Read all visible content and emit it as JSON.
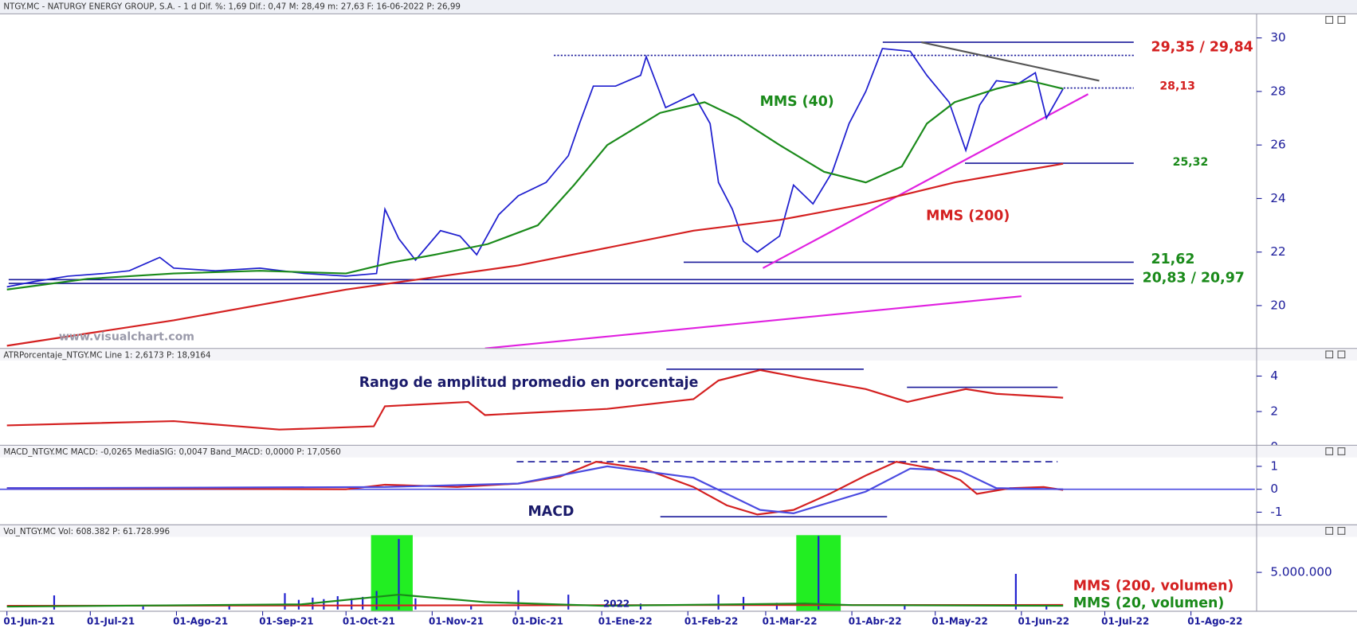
{
  "chart_data": [
    {
      "type": "line",
      "title": "NTGY.MC - NATURGY ENERGY GROUP, S.A. -  1 d Dif. %: 1,69 Dif.: 0,47 M: 28,49 m: 27,63 F: 16-06-2022 P: 26,99",
      "ylim": [
        18.4,
        30.9
      ],
      "yticks": [
        20,
        22,
        24,
        26,
        28,
        30
      ],
      "series": [
        {
          "color": "#1f1fcf",
          "x": [
            "2021-06-01",
            "2021-06-11",
            "2021-06-23",
            "2021-07-06",
            "2021-07-15",
            "2021-07-26",
            "2021-07-31",
            "2021-08-15",
            "2021-08-31",
            "2021-09-16",
            "2021-10-01",
            "2021-10-12",
            "2021-10-15",
            "2021-10-20",
            "2021-10-26",
            "2021-11-04",
            "2021-11-11",
            "2021-11-17",
            "2021-11-25",
            "2021-12-02",
            "2021-12-12",
            "2021-12-20",
            "2021-12-24",
            "2021-12-29",
            "2022-01-06",
            "2022-01-15",
            "2022-01-17",
            "2022-01-24",
            "2022-02-03",
            "2022-02-09",
            "2022-02-12",
            "2022-02-17",
            "2022-02-21",
            "2022-02-26",
            "2022-03-06",
            "2022-03-11",
            "2022-03-18",
            "2022-03-25",
            "2022-03-31",
            "2022-04-06",
            "2022-04-12",
            "2022-04-22",
            "2022-04-28",
            "2022-05-06",
            "2022-05-12",
            "2022-05-17",
            "2022-05-23",
            "2022-05-31",
            "2022-06-06",
            "2022-06-10",
            "2022-06-16"
          ],
          "values": [
            20.7,
            20.9,
            21.1,
            21.2,
            21.3,
            21.8,
            21.4,
            21.3,
            21.4,
            21.2,
            21.1,
            21.2,
            23.6,
            22.5,
            21.7,
            22.8,
            22.6,
            21.9,
            23.4,
            24.1,
            24.6,
            25.6,
            26.8,
            28.2,
            28.2,
            28.6,
            29.3,
            27.4,
            27.9,
            26.8,
            24.6,
            23.6,
            22.4,
            22.0,
            22.6,
            24.5,
            23.8,
            25.0,
            26.8,
            28.0,
            29.6,
            29.5,
            28.6,
            27.6,
            25.8,
            27.5,
            28.4,
            28.3,
            28.7,
            27.0,
            28.1
          ]
        },
        {
          "color": "#1a8a1a",
          "x": [
            "2021-06-01",
            "2021-06-30",
            "2021-07-31",
            "2021-08-31",
            "2021-10-01",
            "2021-10-17",
            "2021-11-02",
            "2021-11-21",
            "2021-12-09",
            "2021-12-22",
            "2022-01-03",
            "2022-01-22",
            "2022-02-07",
            "2022-02-19",
            "2022-03-06",
            "2022-03-22",
            "2022-04-06",
            "2022-04-19",
            "2022-04-28",
            "2022-05-08",
            "2022-05-23",
            "2022-06-04",
            "2022-06-16"
          ],
          "values": [
            20.6,
            21.0,
            21.2,
            21.3,
            21.2,
            21.6,
            21.9,
            22.3,
            23.0,
            24.5,
            26.0,
            27.2,
            27.6,
            27.0,
            26.0,
            25.0,
            24.6,
            25.2,
            26.8,
            27.6,
            28.1,
            28.4,
            28.1
          ]
        },
        {
          "color": "#d42020",
          "x": [
            "2021-06-01",
            "2021-07-31",
            "2021-10-01",
            "2021-12-02",
            "2022-02-03",
            "2022-03-06",
            "2022-04-06",
            "2022-05-08",
            "2022-06-16"
          ],
          "values": [
            18.5,
            19.45,
            20.6,
            21.5,
            22.8,
            23.2,
            23.8,
            24.6,
            25.3
          ]
        }
      ],
      "levels": [
        {
          "label": "29,35 / 29,84",
          "values": [
            29.35,
            29.84
          ],
          "styles": [
            "dotted",
            "solid"
          ],
          "color": "#1a1a9a",
          "label_color": "#d42020",
          "bold": true
        },
        {
          "label": "28,13",
          "values": [
            28.13
          ],
          "styles": [
            "dotted"
          ],
          "color": "#1a1a9a",
          "label_color": "#d42020",
          "bold": false
        },
        {
          "label": "25,32",
          "values": [
            25.32
          ],
          "styles": [
            "solid"
          ],
          "color": "#1a1a9a",
          "label_color": "#1a8a1a",
          "bold": false
        },
        {
          "label": "21,62",
          "values": [
            21.62
          ],
          "styles": [
            "solid"
          ],
          "color": "#1a1a9a",
          "label_color": "#1a8a1a",
          "bold": true
        },
        {
          "label": "20,83 / 20,97",
          "values": [
            20.83,
            20.97
          ],
          "styles": [
            "solid",
            "solid"
          ],
          "color": "#1a1a9a",
          "label_color": "#1a8a1a",
          "bold": true
        }
      ],
      "trendlines": [
        {
          "x": [
            "2022-02-28",
            "2022-06-25"
          ],
          "y": [
            21.4,
            27.9
          ],
          "color": "#e020e0"
        },
        {
          "x": [
            "2021-11-20",
            "2022-06-01"
          ],
          "y": [
            18.4,
            20.35
          ],
          "color": "#e020e0"
        },
        {
          "x": [
            "2022-04-26",
            "2022-06-29"
          ],
          "y": [
            29.84,
            28.4
          ],
          "color": "#555555"
        }
      ],
      "annotations": [
        {
          "text": "MMS (40)",
          "color": "#1a8a1a"
        },
        {
          "text": "MMS (200)",
          "color": "#d42020"
        },
        {
          "text": "www.visualchart.com",
          "color": "#9a9aaa"
        }
      ]
    },
    {
      "type": "line",
      "title": "ATRPorcentaje_NTGY.MC Line 1: 2,6173 P: 18,9164",
      "ylim": [
        0.1,
        5.56
      ],
      "yticks": [
        0,
        2,
        4
      ],
      "series": [
        {
          "color": "#d42020",
          "x": [
            "2021-06-01",
            "2021-07-31",
            "2021-09-07",
            "2021-10-11",
            "2021-10-15",
            "2021-11-14",
            "2021-11-20",
            "2022-01-03",
            "2022-02-03",
            "2022-02-12",
            "2022-02-27",
            "2022-03-14",
            "2022-04-06",
            "2022-04-21",
            "2022-05-01",
            "2022-05-12",
            "2022-05-23",
            "2022-06-16"
          ],
          "values": [
            1.22,
            1.46,
            0.98,
            1.17,
            2.3,
            2.54,
            1.8,
            2.15,
            2.7,
            3.75,
            4.34,
            3.9,
            3.27,
            2.54,
            2.9,
            3.27,
            3.0,
            2.78
          ]
        }
      ],
      "levels": [
        {
          "values": [
            4.39
          ],
          "styles": [
            "solid"
          ],
          "color": "#1a1a9a"
        },
        {
          "values": [
            3.37
          ],
          "styles": [
            "solid"
          ],
          "color": "#1a1a9a"
        }
      ],
      "annotations": [
        {
          "text": "Rango de amplitud promedio en porcentaje",
          "color": "#1a1a6a"
        }
      ]
    },
    {
      "type": "line",
      "title": "MACD_NTGY.MC MACD: -0,0265 MediaSIG: 0,0047 Band_MACD: 0,0000 P: 17,0560",
      "ylim": [
        -1.55,
        1.92
      ],
      "yticks": [
        -1,
        0,
        1
      ],
      "series": [
        {
          "color": "#d42020",
          "x": [
            "2021-06-01",
            "2021-10-01",
            "2021-10-15",
            "2021-11-10",
            "2021-12-02",
            "2021-12-17",
            "2021-12-30",
            "2022-01-16",
            "2022-02-03",
            "2022-02-15",
            "2022-02-26",
            "2022-03-11",
            "2022-03-24",
            "2022-04-06",
            "2022-04-17",
            "2022-04-30",
            "2022-05-10",
            "2022-05-16",
            "2022-05-28",
            "2022-06-09",
            "2022-06-16"
          ],
          "values": [
            0.05,
            0.0,
            0.2,
            0.1,
            0.25,
            0.55,
            1.2,
            0.9,
            0.1,
            -0.7,
            -1.1,
            -0.9,
            -0.2,
            0.6,
            1.2,
            0.9,
            0.4,
            -0.2,
            0.05,
            0.1,
            -0.03
          ]
        },
        {
          "color": "#4a4ae0",
          "x": [
            "2021-06-01",
            "2021-10-15",
            "2021-12-02",
            "2022-01-03",
            "2022-02-03",
            "2022-02-27",
            "2022-03-11",
            "2022-04-06",
            "2022-04-22",
            "2022-05-10",
            "2022-05-23",
            "2022-06-16"
          ],
          "values": [
            0.05,
            0.1,
            0.25,
            1.0,
            0.5,
            -0.9,
            -1.05,
            -0.1,
            0.9,
            0.8,
            0.05,
            0.0
          ]
        }
      ],
      "levels": [
        {
          "values": [
            1.2
          ],
          "styles": [
            "dashed"
          ],
          "color": "#1a1a9a"
        },
        {
          "values": [
            -1.2
          ],
          "styles": [
            "solid"
          ],
          "color": "#1a1a9a"
        },
        {
          "values": [
            0
          ],
          "styles": [
            "solid"
          ],
          "color": "#4a4ae0"
        }
      ],
      "annotations": [
        {
          "text": "MACD",
          "color": "#1a1a6a"
        }
      ]
    },
    {
      "type": "bar",
      "title": "Vol_NTGY.MC Vol: 608.382 P: 61.728.996",
      "ylim": [
        -230000,
        11400000
      ],
      "yticks": [
        {
          "value": 5000000,
          "label": "5.000.000"
        }
      ],
      "xlim": [
        "2021-06-01",
        "2022-08-24"
      ],
      "xticks": [
        {
          "value": "2021-06-01",
          "label": "01-Jun-21"
        },
        {
          "value": "2021-07-01",
          "label": "01-Jul-21"
        },
        {
          "value": "2021-08-01",
          "label": "01-Ago-21"
        },
        {
          "value": "2021-09-01",
          "label": "01-Sep-21"
        },
        {
          "value": "2021-10-01",
          "label": "01-Oct-21"
        },
        {
          "value": "2021-11-01",
          "label": "01-Nov-21"
        },
        {
          "value": "2021-12-01",
          "label": "01-Dic-21"
        },
        {
          "value": "2022-01-01",
          "label": "01-Ene-22"
        },
        {
          "value": "2022-02-01",
          "label": "01-Feb-22"
        },
        {
          "value": "2022-03-01",
          "label": "01-Mar-22"
        },
        {
          "value": "2022-04-01",
          "label": "01-Abr-22"
        },
        {
          "value": "2022-05-01",
          "label": "01-May-22"
        },
        {
          "value": "2022-06-01",
          "label": "01-Jun-22"
        },
        {
          "value": "2022-07-01",
          "label": "01-Jul-22"
        },
        {
          "value": "2022-08-01",
          "label": "01-Ago-22"
        }
      ],
      "highlights": [
        [
          "2021-10-10",
          "2021-10-25"
        ],
        [
          "2022-03-12",
          "2022-03-28"
        ]
      ],
      "highlight_color": "#22ee22",
      "series": [
        {
          "type": "bar",
          "color": "#1f1fcf",
          "x": [
            "2021-06-18",
            "2021-07-20",
            "2021-08-20",
            "2021-09-09",
            "2021-09-14",
            "2021-09-19",
            "2021-09-23",
            "2021-09-28",
            "2021-10-03",
            "2021-10-07",
            "2021-10-12",
            "2021-10-20",
            "2021-10-26",
            "2021-11-15",
            "2021-12-02",
            "2021-12-20",
            "2022-01-15",
            "2022-02-12",
            "2022-02-21",
            "2022-03-05",
            "2022-03-20",
            "2022-04-20",
            "2022-05-30",
            "2022-06-10"
          ],
          "values": [
            1900000,
            400000,
            450000,
            2200000,
            1300000,
            1600000,
            1400000,
            1800000,
            1500000,
            1700000,
            2500000,
            9500000,
            1500000,
            600000,
            2600000,
            2000000,
            800000,
            2000000,
            1700000,
            900000,
            9900000,
            600000,
            4800000,
            700000
          ]
        },
        {
          "type": "line",
          "color": "#d42020",
          "x": [
            "2021-06-01",
            "2021-10-01",
            "2022-02-01",
            "2022-06-16"
          ],
          "values": [
            500000,
            550000,
            600000,
            620000
          ]
        },
        {
          "type": "line",
          "color": "#1a8a1a",
          "x": [
            "2021-06-01",
            "2021-09-15",
            "2021-10-20",
            "2021-11-20",
            "2022-01-01",
            "2022-03-15",
            "2022-04-01",
            "2022-06-16"
          ],
          "values": [
            400000,
            700000,
            2000000,
            1000000,
            500000,
            800000,
            600000,
            500000
          ]
        }
      ],
      "annotations": [
        {
          "text": "MMS (200, volumen)",
          "color": "#d42020"
        },
        {
          "text": "MMS (20, volumen)",
          "color": "#1a8a1a"
        },
        {
          "text": "2022",
          "color": "#1a1a9a"
        }
      ]
    }
  ]
}
